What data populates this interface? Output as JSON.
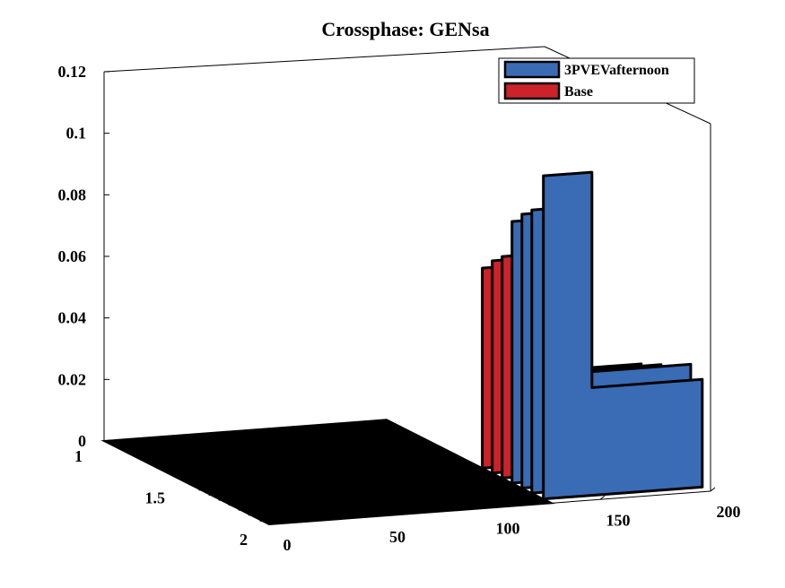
{
  "chart_data": {
    "type": "area",
    "title": "Crossphase: GENsa",
    "z_ticks": [
      "0",
      "0.02",
      "0.04",
      "0.06",
      "0.08",
      "0.1",
      "0.12"
    ],
    "x_ticks": [
      "0",
      "50",
      "100",
      "150",
      "200"
    ],
    "y_ticks": [
      "1",
      "1.5",
      "2"
    ],
    "xlim": [
      0,
      200
    ],
    "ylim": [
      1,
      2
    ],
    "zlim": [
      0,
      0.12
    ],
    "legend_position": "top-right",
    "colors": {
      "blue": "#3a6bb5",
      "red": "#cc2229",
      "edge": "#000000"
    },
    "series": [
      {
        "name": "3PVEVafternoon",
        "color": "#3a6bb5",
        "y": 1.95,
        "x": [
          0,
          128,
          128,
          150,
          150,
          200
        ],
        "z": [
          0,
          0,
          0.105,
          0.105,
          0.035,
          0.035
        ]
      },
      {
        "name": "",
        "color": "#3a6bb5",
        "y": 1.88,
        "x": [
          0,
          128,
          128,
          150,
          150,
          200
        ],
        "z": [
          0,
          0,
          0.092,
          0.092,
          0.038,
          0.038
        ]
      },
      {
        "name": "",
        "color": "#3a6bb5",
        "y": 1.82,
        "x": [
          0,
          128,
          128,
          150,
          150,
          200
        ],
        "z": [
          0,
          0,
          0.089,
          0.089,
          0.036,
          0.036
        ]
      },
      {
        "name": "",
        "color": "#3a6bb5",
        "y": 1.76,
        "x": [
          0,
          128,
          128,
          150,
          150,
          200
        ],
        "z": [
          0,
          0,
          0.085,
          0.085,
          0.034,
          0.034
        ]
      },
      {
        "name": "Base",
        "color": "#cc2229",
        "y": 1.7,
        "x": [
          0,
          128,
          128,
          150,
          150,
          200
        ],
        "z": [
          0,
          0,
          0.072,
          0.072,
          0.033,
          0.033
        ]
      },
      {
        "name": "",
        "color": "#cc2229",
        "y": 1.64,
        "x": [
          0,
          128,
          128,
          150,
          150,
          200
        ],
        "z": [
          0,
          0,
          0.069,
          0.069,
          0.031,
          0.031
        ]
      },
      {
        "name": "",
        "color": "#cc2229",
        "y": 1.58,
        "x": [
          0,
          128,
          128,
          150,
          150,
          200
        ],
        "z": [
          0,
          0,
          0.065,
          0.065,
          0.03,
          0.03
        ]
      }
    ],
    "legend": [
      {
        "label": "3PVEVafternoon",
        "color": "#3a6bb5"
      },
      {
        "label": "Base",
        "color": "#cc2229"
      }
    ]
  }
}
